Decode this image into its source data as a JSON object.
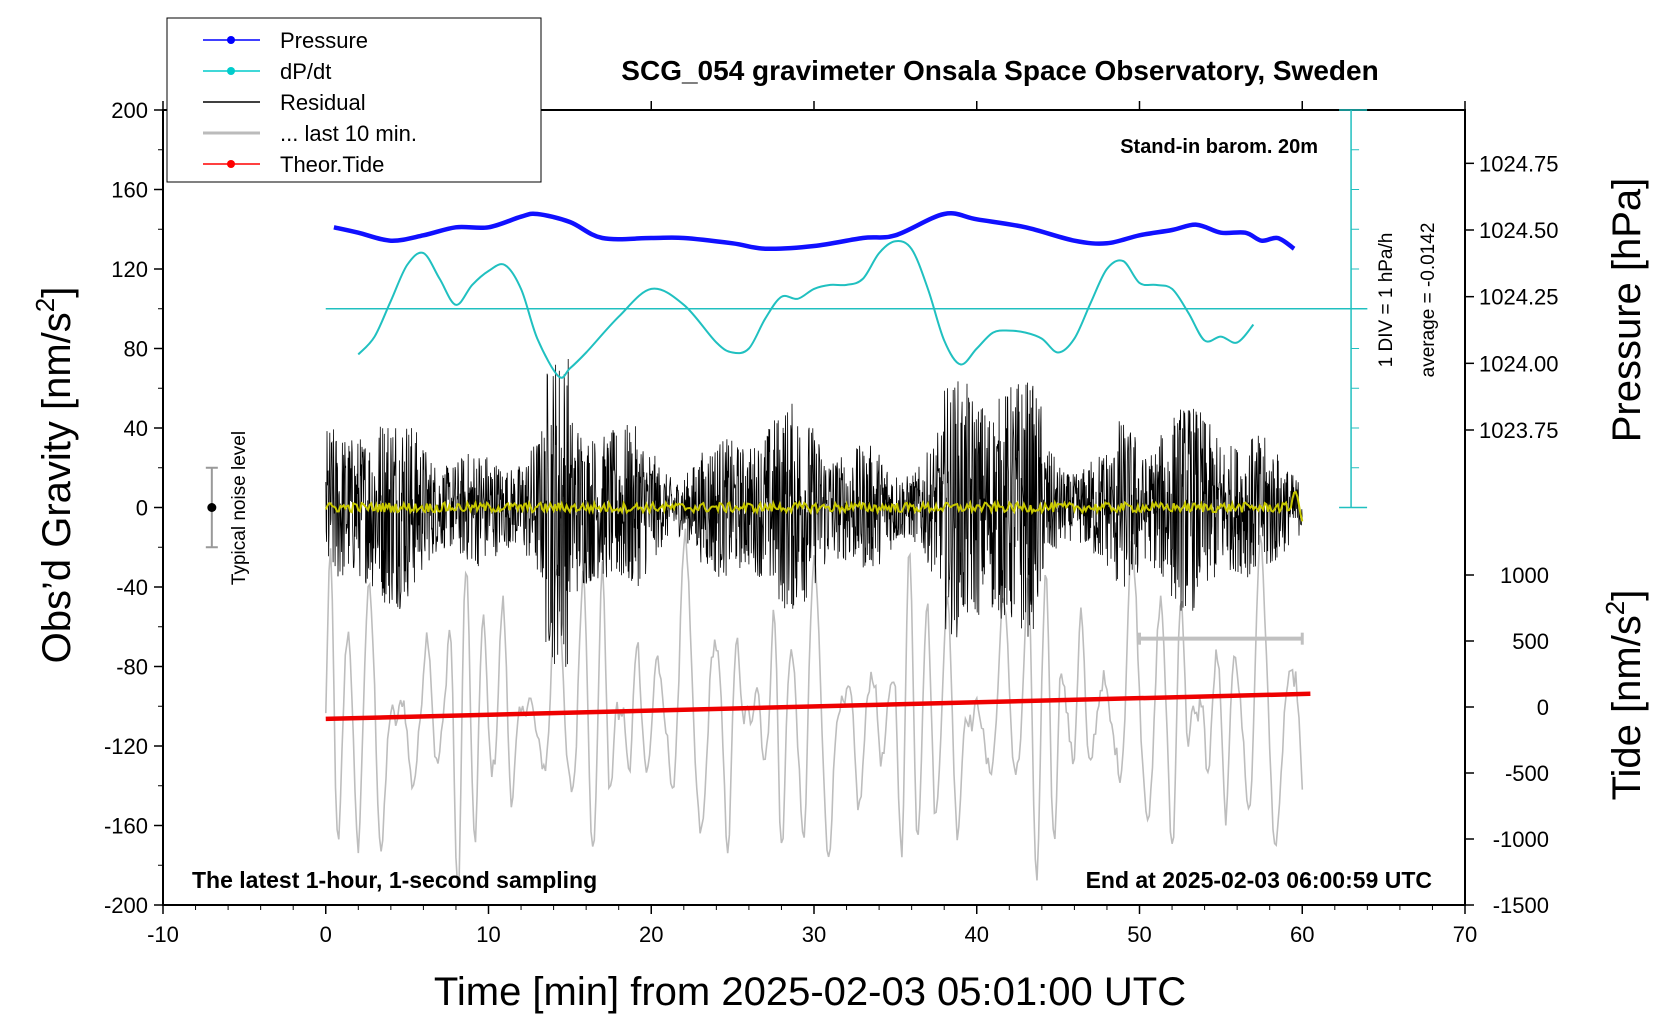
{
  "chart_data": {
    "type": "line",
    "title": "SCG_054 gravimeter Onsala Space Observatory, Sweden",
    "xlabel": "Time [min] from 2025-02-03 05:01:00 UTC",
    "ylabel_left_prefix": "Obs’d Gravity [nm/s",
    "ylabel_left_sup": "2",
    "ylabel_left_suffix": "]",
    "ylabel_right_pressure": "Pressure [hPa]",
    "ylabel_right_tide_prefix": "Tide [nm/s",
    "ylabel_right_tide_sup": "2",
    "ylabel_right_tide_suffix": "]",
    "xlim": [
      -10,
      70
    ],
    "ylim": [
      -200,
      200
    ],
    "x_ticks": [
      "-10",
      "0",
      "10",
      "20",
      "30",
      "40",
      "50",
      "60",
      "70"
    ],
    "y_ticks": [
      "-200",
      "-160",
      "-120",
      "-80",
      "-40",
      "0",
      "40",
      "80",
      "120",
      "160",
      "200"
    ],
    "pressure_ticks": [
      "1023.75",
      "1024.00",
      "1024.25",
      "1024.50",
      "1024.75"
    ],
    "tide_ticks": [
      "-1500",
      "-1000",
      "-500",
      "0",
      "500",
      "1000"
    ],
    "pressure_range": [
      1023.45,
      1024.95
    ],
    "tide_range": [
      -1500,
      1000
    ],
    "legend": [
      {
        "label": "Pressure",
        "color": "#0000ff",
        "marker": true
      },
      {
        "label": "dP/dt",
        "color": "#00cccc",
        "marker": true
      },
      {
        "label": "Residual",
        "color": "#000000",
        "marker": false
      },
      {
        "label": "... last 10 min.",
        "color": "#bbbbbb",
        "marker": false
      },
      {
        "label": "Theor.Tide",
        "color": "#ff0000",
        "marker": true
      }
    ],
    "annotations": {
      "barometer": "Stand-in barom. 20m",
      "dpdt_div": "1 DIV = 1 hPa/h",
      "dpdt_avg": "average = -0.0142",
      "noise": "Typical noise level",
      "bottom_left": "The latest 1-hour, 1-second sampling",
      "bottom_right": "End at 2025-02-03 06:00:59 UTC"
    },
    "noise_level": {
      "x": -7,
      "center": 0,
      "halfwidth": 20
    },
    "last10_bar": {
      "x": [
        50,
        60
      ],
      "y": -66
    },
    "pressure_hpa": {
      "x": [
        0.5,
        2,
        4,
        6,
        8,
        10,
        12,
        13,
        15,
        17,
        20,
        22,
        25,
        27,
        30,
        33,
        35,
        38,
        40,
        43,
        46,
        48,
        50,
        52,
        53.5,
        55,
        56.5,
        57.5,
        58.5,
        59.5
      ],
      "y": [
        1024.51,
        1024.49,
        1024.46,
        1024.48,
        1024.51,
        1024.51,
        1024.55,
        1024.56,
        1024.53,
        1024.47,
        1024.47,
        1024.47,
        1024.45,
        1024.43,
        1024.44,
        1024.47,
        1024.48,
        1024.56,
        1024.54,
        1024.51,
        1024.46,
        1024.45,
        1024.48,
        1024.5,
        1024.52,
        1024.49,
        1024.49,
        1024.46,
        1024.47,
        1024.43
      ]
    },
    "dpdt_gravity_units": {
      "zero_line": 100,
      "x": [
        2,
        3,
        4,
        5,
        6,
        7,
        8,
        9,
        10,
        11,
        12,
        13,
        14.3,
        15,
        16,
        18,
        20,
        22,
        24,
        25,
        26,
        27,
        28,
        29,
        30,
        31,
        32,
        33,
        34,
        35,
        36,
        37,
        38,
        39,
        40,
        41,
        42,
        43,
        44,
        45,
        46,
        47,
        48,
        49,
        50,
        51,
        52,
        53,
        54,
        55,
        56,
        57
      ],
      "y": [
        77,
        86,
        104,
        122,
        128,
        115,
        102,
        112,
        119,
        122,
        110,
        85,
        66,
        70,
        78,
        96,
        110,
        102,
        83,
        78,
        80,
        95,
        106,
        105,
        110,
        112,
        112,
        115,
        128,
        134,
        130,
        110,
        84,
        72,
        80,
        88,
        89,
        88,
        85,
        78,
        85,
        103,
        120,
        124,
        113,
        112,
        110,
        98,
        84,
        86,
        83,
        92
      ]
    },
    "theoretical_tide_nm_s2": {
      "x": [
        0,
        60.5
      ],
      "y": [
        -90,
        100
      ]
    }
  }
}
